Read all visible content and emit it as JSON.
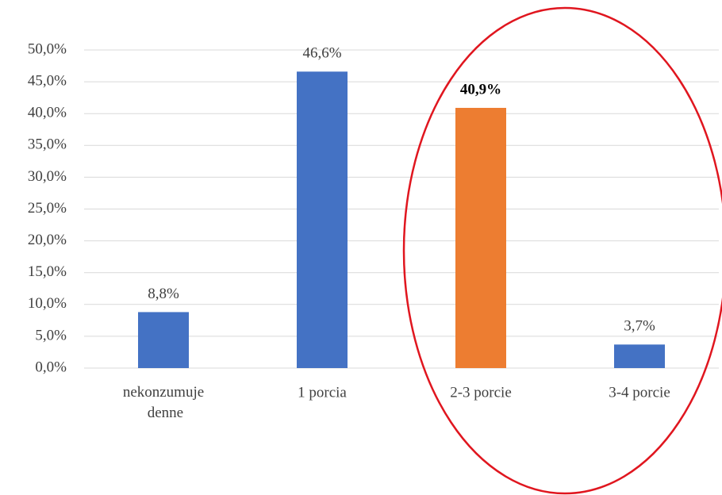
{
  "chart_data": {
    "type": "bar",
    "categories": [
      "nekonzumuje denne",
      "1 porcia",
      "2-3 porcie",
      "3-4 porcie"
    ],
    "values": [
      8.8,
      46.6,
      40.9,
      3.7
    ],
    "value_labels": [
      "8,8%",
      "46,6%",
      "40,9%",
      "3,7%"
    ],
    "colors": [
      "#4472c4",
      "#4472c4",
      "#ed7d31",
      "#4472c4"
    ],
    "value_label_bold": [
      false,
      false,
      true,
      false
    ],
    "ylim": [
      0,
      50
    ],
    "yticks": [
      {
        "value": 0,
        "label": "0,0%"
      },
      {
        "value": 5,
        "label": "5,0%"
      },
      {
        "value": 10,
        "label": "10,0%"
      },
      {
        "value": 15,
        "label": "15,0%"
      },
      {
        "value": 20,
        "label": "20,0%"
      },
      {
        "value": 25,
        "label": "25,0%"
      },
      {
        "value": 30,
        "label": "30,0%"
      },
      {
        "value": 35,
        "label": "35,0%"
      },
      {
        "value": 40,
        "label": "40,0%"
      },
      {
        "value": 45,
        "label": "45,0%"
      },
      {
        "value": 50,
        "label": "50,0%"
      }
    ],
    "grid": true
  }
}
